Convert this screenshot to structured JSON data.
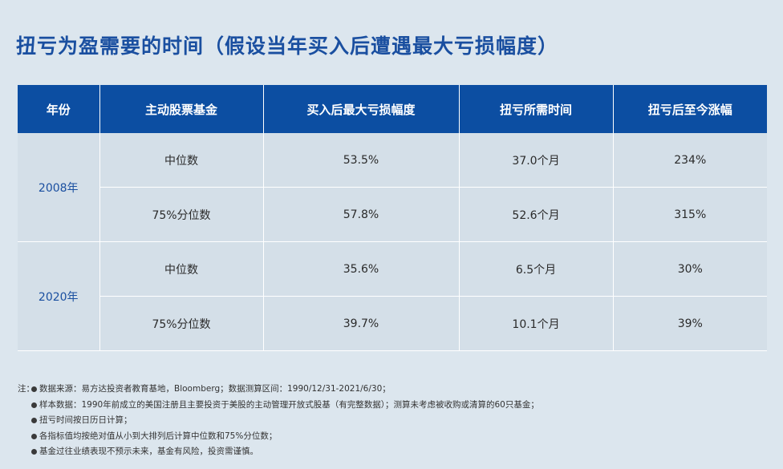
{
  "title": "扭亏为盈需要的时间（假设当年买入后遭遇最大亏损幅度）",
  "table": {
    "headers": [
      "年份",
      "主动股票基金",
      "买入后最大亏损幅度",
      "扭亏所需时间",
      "扭亏后至今涨幅"
    ],
    "groups": [
      {
        "year": "2008年",
        "rows": [
          {
            "fund": "中位数",
            "max_loss": "53.5%",
            "recovery_time": "37.0个月",
            "gain_since": "234%"
          },
          {
            "fund": "75%分位数",
            "max_loss": "57.8%",
            "recovery_time": "52.6个月",
            "gain_since": "315%"
          }
        ]
      },
      {
        "year": "2020年",
        "rows": [
          {
            "fund": "中位数",
            "max_loss": "35.6%",
            "recovery_time": "6.5个月",
            "gain_since": "30%"
          },
          {
            "fund": "75%分位数",
            "max_loss": "39.7%",
            "recovery_time": "10.1个月",
            "gain_since": "39%"
          }
        ]
      }
    ]
  },
  "notes": {
    "prefix": "注：",
    "items": [
      "数据来源：易方达投资者教育基地，Bloomberg；数据测算区间：1990/12/31-2021/6/30；",
      "样本数据：1990年前成立的美国注册且主要投资于美股的主动管理开放式股基（有完整数据）；测算未考虑被收购或清算的60只基金；",
      "扭亏时间按日历日计算；",
      "各指标值均按绝对值从小到大排列后计算中位数和75%分位数；",
      "基金过往业绩表现不预示未来，基金有风险，投资需谨慎。"
    ]
  }
}
